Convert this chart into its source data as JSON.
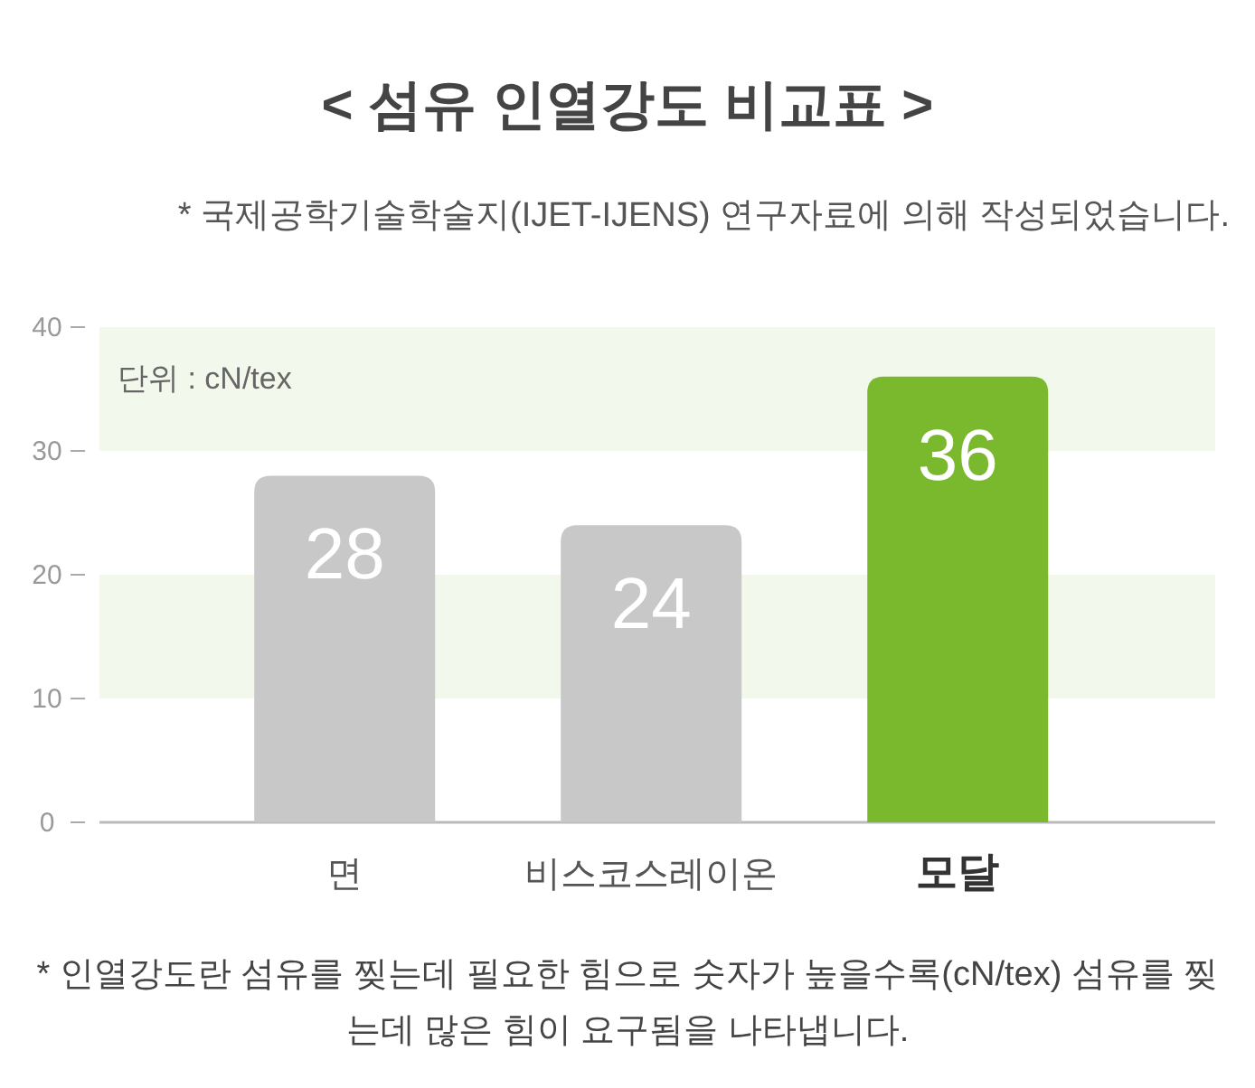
{
  "chart_data": {
    "type": "bar",
    "title": "< 섬유 인열강도 비교표 >",
    "subtitle": "* 국제공학기술학술지(IJET-IJENS) 연구자료에 의해 작성되었습니다.",
    "categories": [
      "면",
      "비스코스레이온",
      "모달"
    ],
    "values": [
      28,
      24,
      36
    ],
    "colors": [
      "#c8c8c8",
      "#c8c8c8",
      "#7ab82e"
    ],
    "ylim": [
      0,
      40
    ],
    "yticks": [
      0,
      10,
      20,
      30,
      40
    ],
    "data_labels": true,
    "bands": [
      {
        "axis": "y",
        "from": 10,
        "to": 20,
        "color": "#f3f8ec"
      },
      {
        "axis": "y",
        "from": 30,
        "to": 40,
        "color": "#f3f8ec"
      }
    ],
    "annotations": [
      "단위 : cN/tex",
      "* 인열강도란 섬유를 찢는데 필요한 힘으로 숫자가 높을수록(cN/tex) 섬유를 찢는데 많은 힘이 요구됨을 나타냅니다."
    ]
  }
}
